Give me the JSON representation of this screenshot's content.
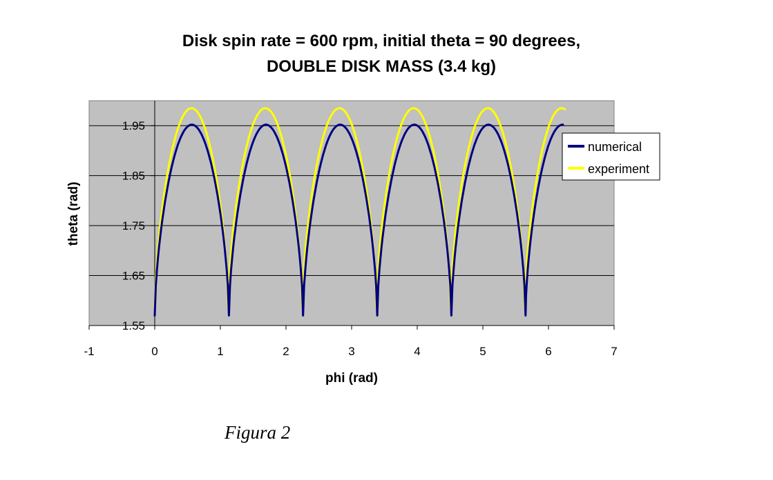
{
  "chart_data": {
    "type": "line",
    "title": "Disk spin rate = 600 rpm, initial theta = 90 degrees,",
    "subtitle": "DOUBLE DISK MASS (3.4 kg)",
    "xlabel": "phi (rad)",
    "ylabel": "theta (rad)",
    "xlim": [
      -1,
      7
    ],
    "ylim": [
      1.55,
      2.0
    ],
    "xticks": [
      "-1",
      "0",
      "1",
      "2",
      "3",
      "4",
      "5",
      "6",
      "7"
    ],
    "yticks": [
      "1.55",
      "1.65",
      "1.75",
      "1.85",
      "1.95"
    ],
    "grid": "horizontal",
    "plot_background": "#c0c0c0",
    "legend_position": "right",
    "series": [
      {
        "name": "numerical",
        "color": "#000080",
        "cusps": [
          0.0,
          1.13,
          2.26,
          3.39,
          4.52,
          5.65
        ],
        "x_end": 6.22,
        "min": 1.57,
        "max": 1.952
      },
      {
        "name": "experiment",
        "color": "#ffff00",
        "cusps": [
          0.0,
          1.12,
          2.25,
          3.38,
          4.51,
          5.64
        ],
        "x_end": 6.25,
        "min": 1.585,
        "max": 1.985,
        "plateau_end": 6.25
      }
    ]
  },
  "caption": "Figura 2"
}
